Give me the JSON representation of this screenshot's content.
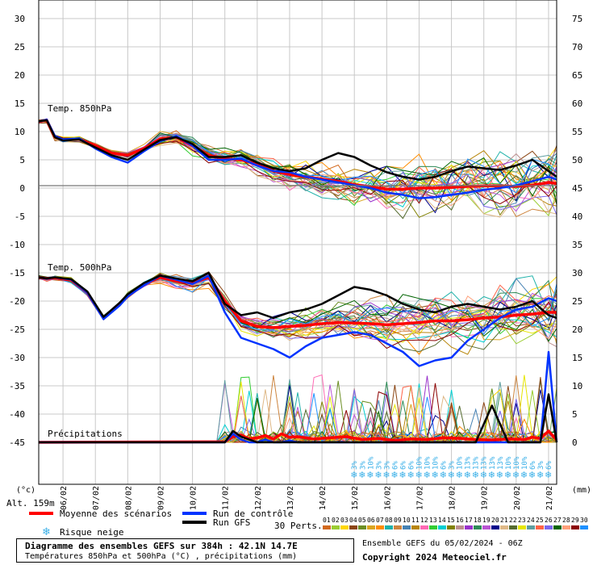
{
  "chart_data": {
    "type": "line",
    "title": "Diagramme des ensembles GEFS sur 384h : 42.1N 14.7E",
    "subtitle": "Températures 850hPa et 500hPa (°C) , précipitations (mm)",
    "run_info": "Ensemble GEFS du 05/02/2024 - 06Z",
    "copyright": "Copyright 2024 Meteociel.fr",
    "altitude_label": "Alt. 159m",
    "left_unit": "(°c)",
    "right_unit": "(mm)",
    "left_axis": {
      "min": -45,
      "max": 30,
      "ticks": [
        30,
        25,
        20,
        15,
        10,
        5,
        0,
        -5,
        -10,
        -15,
        -20,
        -25,
        -30,
        -35,
        -40,
        -45
      ]
    },
    "right_axis": {
      "min": 0,
      "max": 75,
      "ticks": [
        75,
        70,
        65,
        60,
        55,
        50,
        45,
        40,
        35,
        30,
        25,
        20,
        15,
        10,
        5,
        0
      ]
    },
    "x_axis": {
      "unit": "hours",
      "range": [
        0,
        384
      ],
      "date_labels": [
        "06/02",
        "07/02",
        "08/02",
        "09/02",
        "10/02",
        "11/02",
        "12/02",
        "13/02",
        "14/02",
        "15/02",
        "16/02",
        "17/02",
        "18/02",
        "19/02",
        "20/02",
        "21/02"
      ],
      "date_label_hours": [
        18,
        42,
        66,
        90,
        114,
        138,
        162,
        186,
        210,
        234,
        258,
        282,
        306,
        330,
        354,
        378
      ]
    },
    "panel_labels": {
      "t850": "Temp. 850hPa",
      "t500": "Temp. 500hPa",
      "precip": "Précipitations"
    },
    "series": [
      {
        "name": "Moyenne des scénarios",
        "panel": "t850",
        "color": "#ff0000",
        "x": [
          0,
          6,
          12,
          18,
          30,
          42,
          54,
          66,
          78,
          90,
          102,
          114,
          126,
          138,
          150,
          162,
          174,
          186,
          198,
          210,
          222,
          234,
          246,
          258,
          270,
          282,
          294,
          306,
          318,
          330,
          342,
          354,
          366,
          378,
          384
        ],
        "y": [
          11.8,
          12.0,
          9.0,
          8.5,
          8.7,
          7.5,
          6.2,
          5.8,
          7.0,
          8.7,
          9.0,
          7.5,
          5.8,
          5.2,
          5.0,
          4.2,
          3.0,
          2.4,
          2.0,
          1.6,
          1.2,
          0.6,
          0.2,
          -0.2,
          -0.2,
          0.0,
          0.0,
          0.1,
          0.3,
          0.4,
          0.4,
          0.3,
          0.5,
          1.0,
          0.8
        ]
      },
      {
        "name": "Run de contrôle",
        "panel": "t850",
        "color": "#0033ff",
        "x": [
          0,
          6,
          12,
          18,
          30,
          42,
          54,
          66,
          78,
          90,
          102,
          114,
          126,
          138,
          150,
          162,
          174,
          186,
          198,
          210,
          222,
          234,
          246,
          258,
          270,
          282,
          294,
          306,
          318,
          330,
          342,
          354,
          366,
          378,
          384
        ],
        "y": [
          11.8,
          12.1,
          9.2,
          8.6,
          8.8,
          7.0,
          5.5,
          4.5,
          6.5,
          8.3,
          9.2,
          7.5,
          5.0,
          5.0,
          5.2,
          4.0,
          3.0,
          2.8,
          2.0,
          1.5,
          1.0,
          0.5,
          0.0,
          -0.8,
          -1.2,
          -1.8,
          -1.6,
          -1.2,
          -0.8,
          -0.3,
          0.0,
          0.5,
          1.2,
          2.0,
          1.5
        ]
      },
      {
        "name": "Run GFS",
        "panel": "t850",
        "color": "#000000",
        "x": [
          0,
          6,
          12,
          18,
          30,
          42,
          54,
          66,
          78,
          90,
          102,
          114,
          126,
          138,
          150,
          162,
          174,
          186,
          198,
          210,
          222,
          234,
          246,
          258,
          270,
          282,
          294,
          306,
          318,
          330,
          342,
          354,
          366,
          378,
          384
        ],
        "y": [
          11.8,
          12.0,
          9.0,
          8.4,
          8.6,
          7.2,
          5.8,
          5.0,
          6.8,
          8.5,
          9.0,
          7.8,
          5.5,
          5.5,
          5.8,
          4.5,
          3.5,
          3.0,
          3.5,
          5.0,
          6.2,
          5.5,
          4.0,
          2.8,
          2.0,
          1.5,
          2.0,
          3.0,
          3.8,
          3.5,
          3.2,
          4.0,
          5.0,
          3.0,
          2.0
        ]
      },
      {
        "name": "Moyenne des scénarios",
        "panel": "t500",
        "color": "#ff0000",
        "x": [
          0,
          6,
          12,
          24,
          36,
          48,
          60,
          66,
          78,
          90,
          102,
          114,
          126,
          138,
          150,
          162,
          174,
          186,
          198,
          210,
          222,
          234,
          246,
          258,
          270,
          282,
          294,
          306,
          318,
          330,
          342,
          354,
          366,
          378,
          384
        ],
        "y": [
          -15.8,
          -16.0,
          -15.9,
          -16.3,
          -18.5,
          -23.0,
          -20.5,
          -19.0,
          -17.0,
          -15.8,
          -16.5,
          -16.8,
          -15.8,
          -20.0,
          -23.5,
          -24.5,
          -24.7,
          -24.5,
          -24.3,
          -24.0,
          -23.8,
          -23.9,
          -24.0,
          -24.2,
          -24.0,
          -23.8,
          -23.5,
          -23.5,
          -23.3,
          -23.0,
          -22.8,
          -22.5,
          -22.3,
          -22.0,
          -22.0
        ]
      },
      {
        "name": "Run de contrôle",
        "panel": "t500",
        "color": "#0033ff",
        "x": [
          0,
          6,
          12,
          24,
          36,
          48,
          60,
          66,
          78,
          90,
          102,
          114,
          126,
          138,
          150,
          162,
          174,
          186,
          198,
          210,
          222,
          234,
          246,
          258,
          270,
          282,
          294,
          306,
          318,
          330,
          342,
          354,
          366,
          378,
          384
        ],
        "y": [
          -15.8,
          -16.0,
          -15.8,
          -16.2,
          -18.5,
          -23.2,
          -20.8,
          -19.2,
          -17.2,
          -15.5,
          -16.2,
          -17.0,
          -15.5,
          -22.0,
          -26.5,
          -27.5,
          -28.5,
          -30.0,
          -28.0,
          -26.5,
          -26.0,
          -25.5,
          -26.0,
          -27.5,
          -29.0,
          -31.5,
          -30.5,
          -30.0,
          -27.0,
          -25.0,
          -23.0,
          -21.5,
          -21.0,
          -19.5,
          -20.0
        ]
      },
      {
        "name": "Run GFS",
        "panel": "t500",
        "color": "#000000",
        "x": [
          0,
          6,
          12,
          24,
          36,
          48,
          60,
          66,
          78,
          90,
          102,
          114,
          126,
          138,
          150,
          162,
          174,
          186,
          198,
          210,
          222,
          234,
          246,
          258,
          270,
          282,
          294,
          306,
          318,
          330,
          342,
          354,
          366,
          378,
          384
        ],
        "y": [
          -15.8,
          -16.0,
          -15.8,
          -16.1,
          -18.3,
          -22.8,
          -20.3,
          -18.8,
          -16.8,
          -15.5,
          -16.0,
          -16.5,
          -15.0,
          -20.5,
          -22.5,
          -22.0,
          -23.0,
          -22.0,
          -21.5,
          -20.5,
          -19.0,
          -17.5,
          -18.0,
          -19.0,
          -20.5,
          -21.5,
          -22.0,
          -21.0,
          -20.5,
          -21.0,
          -21.5,
          -21.0,
          -20.0,
          -22.5,
          -23.0
        ]
      },
      {
        "name": "Moyenne des scénarios",
        "panel": "precip",
        "color": "#ff0000",
        "x": [
          0,
          138,
          144,
          150,
          156,
          162,
          168,
          174,
          180,
          186,
          192,
          204,
          216,
          228,
          240,
          252,
          264,
          276,
          288,
          300,
          312,
          324,
          336,
          348,
          360,
          366,
          372,
          378,
          384
        ],
        "y": [
          0.0,
          0.1,
          1.0,
          1.3,
          0.6,
          0.8,
          1.2,
          0.6,
          1.5,
          0.9,
          1.0,
          0.6,
          0.8,
          1.0,
          0.5,
          0.7,
          0.3,
          0.6,
          0.5,
          0.8,
          0.7,
          0.5,
          0.4,
          0.6,
          0.5,
          0.9,
          0.7,
          2.0,
          0.4
        ]
      },
      {
        "name": "Run de contrôle",
        "panel": "precip",
        "color": "#0033ff",
        "x": [
          0,
          138,
          144,
          150,
          156,
          162,
          168,
          174,
          180,
          186,
          192,
          204,
          216,
          228,
          240,
          252,
          264,
          276,
          288,
          300,
          312,
          324,
          336,
          348,
          360,
          366,
          372,
          378,
          384
        ],
        "y": [
          0.0,
          0.0,
          1.5,
          0.5,
          0.0,
          0.0,
          0.5,
          0.0,
          0.0,
          0.3,
          0.0,
          0.0,
          0.0,
          0.0,
          0.0,
          0.0,
          0.0,
          0.0,
          0.0,
          0.0,
          0.0,
          0.0,
          0.0,
          0.0,
          0.0,
          0.0,
          0.0,
          16.0,
          0.0
        ]
      },
      {
        "name": "Run GFS",
        "panel": "precip",
        "color": "#000000",
        "x": [
          0,
          138,
          144,
          150,
          156,
          162,
          168,
          174,
          180,
          186,
          192,
          204,
          216,
          228,
          240,
          252,
          264,
          276,
          288,
          300,
          312,
          324,
          336,
          348,
          360,
          366,
          372,
          378,
          384
        ],
        "y": [
          0.0,
          0.0,
          2.0,
          1.0,
          0.5,
          0.0,
          0.0,
          0.0,
          0.0,
          0.0,
          0.0,
          0.0,
          0.0,
          0.0,
          0.0,
          0.0,
          0.0,
          0.0,
          0.0,
          0.0,
          0.0,
          0.0,
          6.5,
          0.0,
          0.0,
          0.0,
          0.0,
          8.5,
          0.0
        ]
      }
    ],
    "snow_risk": {
      "x": [
        234,
        240,
        246,
        252,
        258,
        264,
        270,
        276,
        282,
        288,
        294,
        300,
        306,
        312,
        318,
        324,
        330,
        336,
        342,
        348,
        354,
        360,
        366,
        372,
        378
      ],
      "labels": [
        "3%",
        "3%",
        "10%",
        "3%",
        "3%",
        "6%",
        "6%",
        "6%",
        "10%",
        "10%",
        "10%",
        "6%",
        "3%",
        "10%",
        "13%",
        "13%",
        "13%",
        "13%",
        "13%",
        "10%",
        "10%",
        "10%",
        "6%",
        "3%",
        "6%"
      ]
    },
    "legend": {
      "placement": "bottom",
      "items": [
        {
          "label": "Moyenne des scénarios",
          "color": "#ff0000"
        },
        {
          "label": "Run de contrôle",
          "color": "#0033ff"
        },
        {
          "label": "Run GFS",
          "color": "#000000"
        }
      ],
      "snow_label": "Risque neige",
      "perts_label": "30 Perts.",
      "perts_numbers": [
        "01",
        "02",
        "03",
        "04",
        "05",
        "06",
        "07",
        "08",
        "09",
        "10",
        "11",
        "12",
        "13",
        "14",
        "15",
        "16",
        "17",
        "18",
        "19",
        "20",
        "21",
        "22",
        "23",
        "24",
        "25",
        "26",
        "27",
        "28",
        "29",
        "30"
      ],
      "perts_colors": [
        "#d2691e",
        "#9acd32",
        "#ffd700",
        "#8b4513",
        "#6b8e23",
        "#daa520",
        "#ff8c00",
        "#20b2aa",
        "#cd853f",
        "#4682b4",
        "#b8860b",
        "#ff69b4",
        "#32cd32",
        "#00ced1",
        "#808000",
        "#bc8f8f",
        "#9932cc",
        "#2e8b57",
        "#ba55d3",
        "#00008b",
        "#deb887",
        "#556b2f",
        "#e6e600",
        "#5f9ea0",
        "#ff6347",
        "#7b68ee",
        "#006400",
        "#ffa07a",
        "#8b0000",
        "#1e90ff"
      ]
    },
    "grid": true
  }
}
